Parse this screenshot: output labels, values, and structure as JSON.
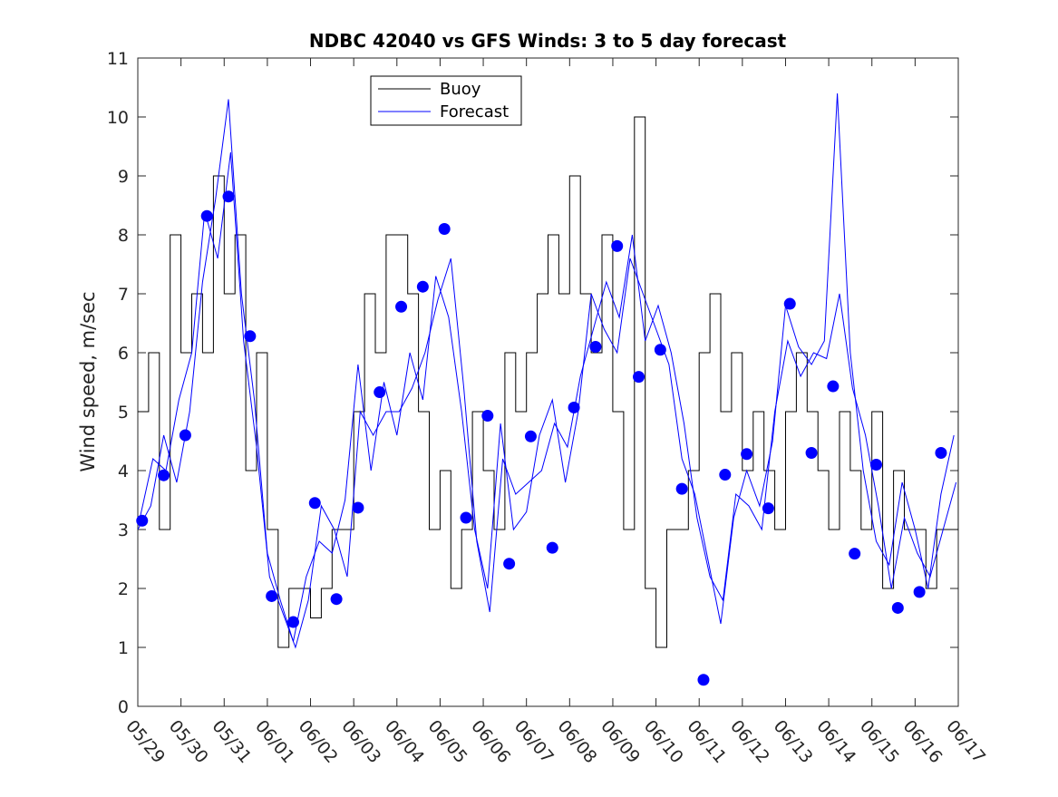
{
  "chart_data": {
    "type": "line",
    "title": "NDBC 42040 vs GFS Winds: 3 to 5 day forecast",
    "xlabel": "",
    "ylabel": "Wind speed, m/sec",
    "xlim": [
      0,
      19
    ],
    "ylim": [
      0,
      11
    ],
    "x_tick_labels": [
      "05/29",
      "05/30",
      "05/31",
      "06/01",
      "06/02",
      "06/03",
      "06/04",
      "06/05",
      "06/06",
      "06/07",
      "06/08",
      "06/09",
      "06/10",
      "06/11",
      "06/12",
      "06/13",
      "06/14",
      "06/15",
      "06/16",
      "06/17"
    ],
    "y_ticks": [
      0,
      1,
      2,
      3,
      4,
      5,
      6,
      7,
      8,
      9,
      10,
      11
    ],
    "grid": false,
    "legend": {
      "placement": "top-center",
      "entries": [
        "Buoy",
        "Forecast"
      ]
    },
    "colors": {
      "buoy": "#000000",
      "forecast": "#0000ff",
      "markers": "#0000ff"
    },
    "series": [
      {
        "name": "Buoy",
        "x": [
          0.0,
          0.25,
          0.5,
          0.75,
          1.0,
          1.25,
          1.5,
          1.75,
          2.0,
          2.25,
          2.5,
          2.75,
          3.0,
          3.25,
          3.5,
          3.75,
          4.0,
          4.25,
          4.5,
          4.75,
          5.0,
          5.25,
          5.5,
          5.75,
          6.0,
          6.25,
          6.5,
          6.75,
          7.0,
          7.25,
          7.5,
          7.75,
          8.0,
          8.25,
          8.5,
          8.75,
          9.0,
          9.25,
          9.5,
          9.75,
          10.0,
          10.25,
          10.5,
          10.75,
          11.0,
          11.25,
          11.5,
          11.75,
          12.0,
          12.25,
          12.5,
          12.75,
          13.0,
          13.25,
          13.5,
          13.75,
          14.0,
          14.25,
          14.5,
          14.75,
          15.0,
          15.25,
          15.5,
          15.75,
          16.0,
          16.25,
          16.5,
          16.75,
          17.0,
          17.25,
          17.5,
          17.75,
          18.0,
          18.25,
          18.5,
          18.75,
          19.0
        ],
        "y": [
          5,
          6,
          3,
          8,
          6,
          7,
          6,
          9,
          7,
          8,
          4,
          6,
          3,
          1,
          2,
          2,
          1.5,
          2,
          3,
          3,
          5,
          7,
          6,
          8,
          8,
          7,
          5,
          3,
          4,
          2,
          3,
          5,
          4,
          3,
          6,
          5,
          6,
          7,
          8,
          7,
          9,
          7,
          6,
          8,
          5,
          3,
          10,
          2,
          1,
          3,
          3,
          4,
          6,
          7,
          5,
          6,
          4,
          5,
          4,
          3,
          5,
          6,
          5,
          4,
          3,
          5,
          4,
          3,
          5,
          2,
          4,
          3,
          3,
          2,
          3,
          3,
          5
        ]
      },
      {
        "name": "Forecast",
        "x": [
          0.0,
          0.3,
          0.6,
          0.9,
          1.2,
          1.5,
          1.8,
          2.1,
          2.4,
          2.7,
          3.0,
          3.3,
          3.6,
          3.9,
          4.2,
          4.5,
          4.8,
          5.1,
          5.4,
          5.7,
          6.0,
          6.3,
          6.6,
          6.9,
          7.2,
          7.5,
          7.8,
          8.1,
          8.4,
          8.7,
          9.0,
          9.3,
          9.6,
          9.9,
          10.2,
          10.5,
          10.8,
          11.1,
          11.4,
          11.7,
          12.0,
          12.3,
          12.6,
          12.9,
          13.2,
          13.5,
          13.8,
          14.1,
          14.4,
          14.7,
          15.0,
          15.3,
          15.6,
          15.9,
          16.2,
          16.5,
          16.8,
          17.1,
          17.4,
          17.7,
          18.0,
          18.3,
          18.6,
          18.9
        ],
        "y": [
          3.0,
          3.4,
          4.6,
          3.8,
          5.0,
          7.2,
          8.6,
          10.3,
          7.0,
          5.2,
          2.6,
          1.8,
          1.1,
          2.2,
          2.8,
          2.6,
          3.5,
          5.8,
          4.0,
          5.5,
          4.6,
          6.0,
          5.2,
          7.3,
          6.6,
          5.0,
          3.0,
          2.0,
          4.8,
          3.0,
          3.3,
          4.6,
          5.2,
          3.8,
          5.0,
          7.0,
          6.4,
          6.0,
          7.6,
          7.0,
          6.4,
          5.8,
          4.2,
          3.6,
          2.5,
          1.4,
          3.2,
          4.0,
          3.4,
          4.5,
          6.8,
          6.1,
          5.8,
          6.2,
          10.4,
          6.0,
          4.0,
          2.8,
          2.4,
          3.8,
          3.0,
          2.0,
          3.6,
          4.6
        ]
      },
      {
        "name": "",
        "x": [
          0.05,
          0.35,
          0.65,
          0.95,
          1.25,
          1.55,
          1.85,
          2.15,
          2.45,
          2.75,
          3.05,
          3.35,
          3.65,
          3.95,
          4.25,
          4.55,
          4.85,
          5.15,
          5.45,
          5.75,
          6.05,
          6.35,
          6.65,
          6.95,
          7.25,
          7.55,
          7.85,
          8.15,
          8.45,
          8.75,
          9.05,
          9.35,
          9.65,
          9.95,
          10.25,
          10.55,
          10.85,
          11.15,
          11.45,
          11.75,
          12.05,
          12.35,
          12.65,
          12.95,
          13.25,
          13.55,
          13.85,
          14.15,
          14.45,
          14.75,
          15.05,
          15.35,
          15.65,
          15.95,
          16.25,
          16.55,
          16.85,
          17.15,
          17.45,
          17.75,
          18.05,
          18.35,
          18.65,
          18.95
        ],
        "y": [
          3.2,
          4.2,
          4.0,
          5.2,
          6.0,
          8.4,
          7.6,
          9.4,
          6.2,
          4.4,
          2.2,
          1.6,
          1.0,
          1.8,
          3.4,
          3.0,
          2.2,
          5.0,
          4.6,
          5.0,
          5.0,
          5.4,
          6.0,
          6.9,
          7.6,
          5.4,
          2.8,
          1.6,
          4.2,
          3.6,
          3.8,
          4.0,
          4.8,
          4.4,
          5.6,
          6.4,
          7.2,
          6.6,
          8.0,
          6.2,
          6.8,
          6.0,
          4.8,
          3.2,
          2.2,
          1.8,
          3.6,
          3.4,
          3.0,
          5.0,
          6.2,
          5.6,
          6.0,
          5.9,
          7.0,
          5.4,
          4.6,
          3.4,
          2.0,
          3.2,
          2.6,
          2.2,
          3.0,
          3.8
        ]
      }
    ],
    "markers": {
      "x": [
        0.1,
        0.6,
        1.1,
        1.6,
        2.1,
        2.6,
        3.1,
        3.6,
        4.1,
        4.6,
        5.1,
        5.6,
        6.1,
        6.6,
        7.1,
        7.6,
        8.1,
        8.6,
        9.1,
        9.6,
        10.1,
        10.6,
        11.1,
        11.6,
        12.1,
        12.6,
        13.1,
        13.6,
        14.1,
        14.6,
        15.1,
        15.6,
        16.1,
        16.6,
        17.1,
        17.6,
        18.1,
        18.6
      ],
      "y": [
        3.15,
        3.92,
        4.6,
        8.32,
        8.65,
        6.28,
        1.87,
        1.43,
        3.45,
        1.82,
        3.37,
        5.33,
        6.78,
        7.12,
        8.1,
        3.2,
        4.93,
        2.42,
        4.58,
        2.69,
        5.07,
        6.1,
        7.81,
        5.59,
        6.05,
        3.69,
        0.45,
        3.93,
        4.28,
        3.36,
        6.83,
        4.3,
        5.43,
        2.59,
        4.1,
        1.67,
        1.94,
        4.3
      ]
    }
  }
}
